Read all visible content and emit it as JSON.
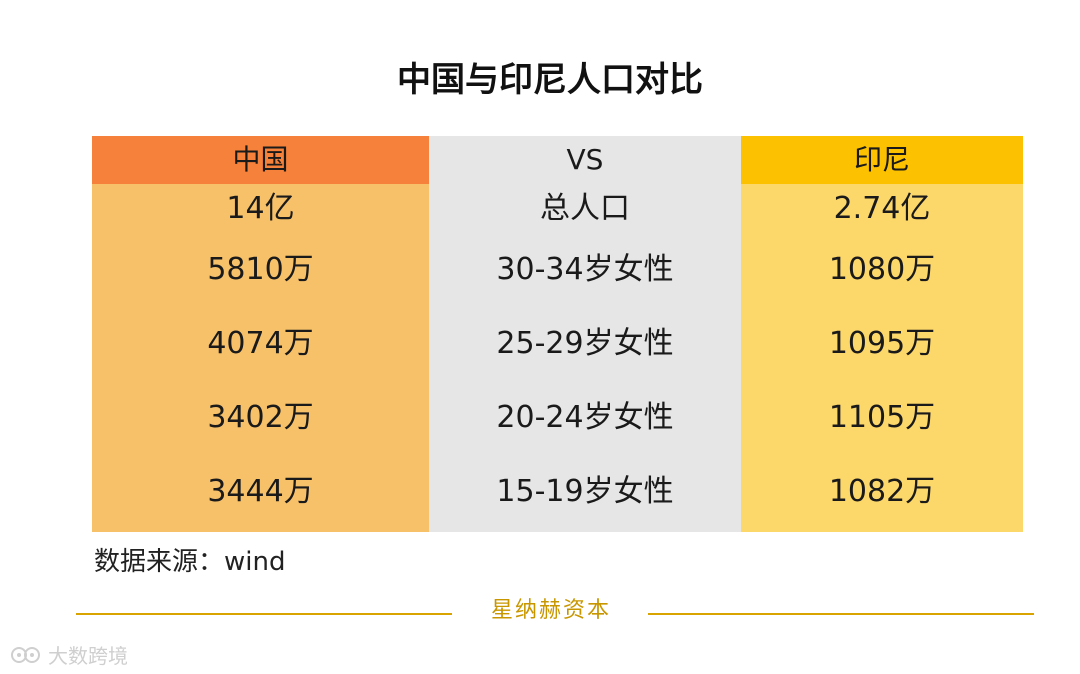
{
  "chart_data": {
    "type": "table",
    "title": "中国与印尼人口对比",
    "columns": [
      "中国",
      "VS",
      "印尼"
    ],
    "rows": [
      {
        "china": "14亿",
        "metric": "总人口",
        "indonesia": "2.74亿"
      },
      {
        "china": "5810万",
        "metric": "30-34岁女性",
        "indonesia": "1080万"
      },
      {
        "china": "4074万",
        "metric": "25-29岁女性",
        "indonesia": "1095万"
      },
      {
        "china": "3402万",
        "metric": "20-24岁女性",
        "indonesia": "1105万"
      },
      {
        "china": "3444万",
        "metric": "15-19岁女性",
        "indonesia": "1082万"
      }
    ],
    "source": "数据来源：wind"
  },
  "footer": {
    "brand": "星纳赫资本"
  },
  "watermark": {
    "text": "大数跨境"
  },
  "colors": {
    "china_header": "#f5813b",
    "china_body": "#f7c16a",
    "vs_body": "#e6e6e6",
    "indonesia_header": "#fcc100",
    "indonesia_body": "#fcd76a",
    "gold_line": "#d9a400"
  }
}
